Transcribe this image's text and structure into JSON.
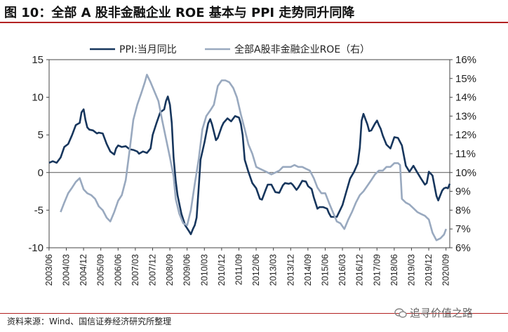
{
  "title": "图 10：全部 A 股非金融企业 ROE 基本与 PPI 走势同升同降",
  "source": "资料来源：Wind、国信证券经济研究所整理",
  "watermark": "追寻价值之路",
  "colors": {
    "ppi": "#17365d",
    "roe": "#99a9bf",
    "accent": "#b22222"
  },
  "chart_data": {
    "type": "line",
    "x": [
      "2003/06",
      "2004/03",
      "2004/12",
      "2005/09",
      "2006/06",
      "2007/03",
      "2007/12",
      "2008/09",
      "2009/06",
      "2010/03",
      "2010/12",
      "2011/09",
      "2012/06",
      "2013/03",
      "2013/12",
      "2014/09",
      "2015/06",
      "2016/03",
      "2016/12",
      "2017/09",
      "2018/06",
      "2019/03",
      "2019/12",
      "2020/09"
    ],
    "legend": [
      "PPI:当月同比",
      "全部A股非金融企业ROE（右）"
    ],
    "left_axis": {
      "ylim": [
        -10,
        15
      ],
      "ticks": [
        "15",
        "10",
        "5",
        "0",
        "-5",
        "-10"
      ]
    },
    "right_axis": {
      "ylim": [
        6,
        16
      ],
      "ticks": [
        "16%",
        "15%",
        "14%",
        "13%",
        "12%",
        "11%",
        "10%",
        "9%",
        "8%",
        "7%",
        "6%"
      ]
    },
    "series": [
      {
        "name": "PPI:当月同比",
        "axis": "left",
        "points": [
          [
            2003.42,
            1.3
          ],
          [
            2003.58,
            1.5
          ],
          [
            2003.75,
            1.3
          ],
          [
            2003.92,
            2.0
          ],
          [
            2004.08,
            3.4
          ],
          [
            2004.25,
            3.8
          ],
          [
            2004.42,
            5.0
          ],
          [
            2004.58,
            6.3
          ],
          [
            2004.75,
            6.6
          ],
          [
            2004.83,
            8.0
          ],
          [
            2004.92,
            8.4
          ],
          [
            2005.0,
            7.0
          ],
          [
            2005.08,
            6.0
          ],
          [
            2005.17,
            5.7
          ],
          [
            2005.33,
            5.6
          ],
          [
            2005.5,
            5.2
          ],
          [
            2005.58,
            5.3
          ],
          [
            2005.75,
            5.2
          ],
          [
            2005.92,
            3.8
          ],
          [
            2006.08,
            2.8
          ],
          [
            2006.25,
            2.4
          ],
          [
            2006.33,
            3.2
          ],
          [
            2006.42,
            3.6
          ],
          [
            2006.58,
            3.4
          ],
          [
            2006.75,
            3.5
          ],
          [
            2006.92,
            3.1
          ],
          [
            2007.08,
            3.0
          ],
          [
            2007.25,
            2.8
          ],
          [
            2007.33,
            2.5
          ],
          [
            2007.5,
            2.8
          ],
          [
            2007.67,
            2.6
          ],
          [
            2007.83,
            3.2
          ],
          [
            2007.92,
            5.0
          ],
          [
            2008.08,
            6.5
          ],
          [
            2008.25,
            8.0
          ],
          [
            2008.42,
            8.4
          ],
          [
            2008.5,
            9.5
          ],
          [
            2008.58,
            10.1
          ],
          [
            2008.67,
            9.0
          ],
          [
            2008.75,
            6.6
          ],
          [
            2008.83,
            2.0
          ],
          [
            2008.92,
            -1.1
          ],
          [
            2009.0,
            -3.0
          ],
          [
            2009.17,
            -5.5
          ],
          [
            2009.33,
            -7.0
          ],
          [
            2009.5,
            -7.8
          ],
          [
            2009.58,
            -8.2
          ],
          [
            2009.67,
            -7.5
          ],
          [
            2009.75,
            -7.0
          ],
          [
            2009.83,
            -6.0
          ],
          [
            2009.92,
            -2.0
          ],
          [
            2010.0,
            1.7
          ],
          [
            2010.17,
            4.0
          ],
          [
            2010.33,
            6.5
          ],
          [
            2010.42,
            7.1
          ],
          [
            2010.5,
            6.4
          ],
          [
            2010.67,
            4.3
          ],
          [
            2010.75,
            4.6
          ],
          [
            2010.92,
            6.1
          ],
          [
            2011.0,
            6.6
          ],
          [
            2011.17,
            7.2
          ],
          [
            2011.33,
            6.8
          ],
          [
            2011.5,
            7.5
          ],
          [
            2011.67,
            7.3
          ],
          [
            2011.75,
            6.5
          ],
          [
            2011.83,
            5.0
          ],
          [
            2011.92,
            1.7
          ],
          [
            2012.08,
            0.1
          ],
          [
            2012.25,
            -1.4
          ],
          [
            2012.42,
            -2.1
          ],
          [
            2012.58,
            -3.5
          ],
          [
            2012.67,
            -3.6
          ],
          [
            2012.83,
            -2.3
          ],
          [
            2012.92,
            -1.6
          ],
          [
            2013.08,
            -1.6
          ],
          [
            2013.25,
            -2.6
          ],
          [
            2013.42,
            -2.7
          ],
          [
            2013.58,
            -1.7
          ],
          [
            2013.67,
            -1.4
          ],
          [
            2013.83,
            -1.5
          ],
          [
            2013.92,
            -1.4
          ],
          [
            2014.0,
            -1.6
          ],
          [
            2014.17,
            -2.3
          ],
          [
            2014.25,
            -2.0
          ],
          [
            2014.42,
            -1.1
          ],
          [
            2014.58,
            -1.2
          ],
          [
            2014.67,
            -1.8
          ],
          [
            2014.83,
            -2.2
          ],
          [
            2014.92,
            -3.3
          ],
          [
            2015.08,
            -4.8
          ],
          [
            2015.17,
            -4.6
          ],
          [
            2015.33,
            -4.6
          ],
          [
            2015.5,
            -4.8
          ],
          [
            2015.58,
            -5.4
          ],
          [
            2015.67,
            -5.9
          ],
          [
            2015.83,
            -5.9
          ],
          [
            2015.92,
            -5.9
          ],
          [
            2016.08,
            -4.9
          ],
          [
            2016.17,
            -4.3
          ],
          [
            2016.33,
            -2.6
          ],
          [
            2016.5,
            -0.8
          ],
          [
            2016.67,
            0.1
          ],
          [
            2016.83,
            1.2
          ],
          [
            2016.92,
            3.3
          ],
          [
            2017.0,
            6.9
          ],
          [
            2017.08,
            7.8
          ],
          [
            2017.25,
            6.4
          ],
          [
            2017.33,
            5.5
          ],
          [
            2017.42,
            5.6
          ],
          [
            2017.58,
            6.5
          ],
          [
            2017.67,
            6.9
          ],
          [
            2017.75,
            6.3
          ],
          [
            2017.83,
            5.8
          ],
          [
            2017.92,
            4.9
          ],
          [
            2018.08,
            3.7
          ],
          [
            2018.25,
            3.2
          ],
          [
            2018.42,
            4.7
          ],
          [
            2018.58,
            4.6
          ],
          [
            2018.75,
            3.6
          ],
          [
            2018.92,
            0.9
          ],
          [
            2019.08,
            0.1
          ],
          [
            2019.25,
            0.9
          ],
          [
            2019.42,
            0.0
          ],
          [
            2019.58,
            -0.8
          ],
          [
            2019.75,
            -1.6
          ],
          [
            2019.83,
            -1.4
          ],
          [
            2019.92,
            0.1
          ],
          [
            2020.08,
            -0.4
          ],
          [
            2020.25,
            -3.1
          ],
          [
            2020.33,
            -3.7
          ],
          [
            2020.42,
            -3.0
          ],
          [
            2020.5,
            -2.4
          ],
          [
            2020.58,
            -2.1
          ],
          [
            2020.67,
            -2.0
          ],
          [
            2020.75,
            -2.1
          ],
          [
            2020.83,
            -1.5
          ]
        ]
      },
      {
        "name": "全部A股非金融企业ROE（右）",
        "axis": "right",
        "points": [
          [
            2003.92,
            7.9
          ],
          [
            2004.08,
            8.4
          ],
          [
            2004.25,
            8.9
          ],
          [
            2004.42,
            9.2
          ],
          [
            2004.58,
            9.5
          ],
          [
            2004.75,
            9.7
          ],
          [
            2004.92,
            9.1
          ],
          [
            2005.08,
            8.9
          ],
          [
            2005.25,
            8.8
          ],
          [
            2005.42,
            8.6
          ],
          [
            2005.58,
            8.2
          ],
          [
            2005.75,
            8.0
          ],
          [
            2005.92,
            7.6
          ],
          [
            2006.08,
            7.4
          ],
          [
            2006.25,
            7.9
          ],
          [
            2006.42,
            8.5
          ],
          [
            2006.58,
            8.8
          ],
          [
            2006.75,
            9.6
          ],
          [
            2006.92,
            11.2
          ],
          [
            2007.08,
            12.8
          ],
          [
            2007.25,
            13.6
          ],
          [
            2007.42,
            14.2
          ],
          [
            2007.58,
            14.8
          ],
          [
            2007.67,
            15.2
          ],
          [
            2007.83,
            14.8
          ],
          [
            2008.0,
            14.3
          ],
          [
            2008.17,
            13.8
          ],
          [
            2008.33,
            12.8
          ],
          [
            2008.5,
            11.8
          ],
          [
            2008.67,
            10.8
          ],
          [
            2008.83,
            9.8
          ],
          [
            2008.92,
            8.6
          ],
          [
            2009.08,
            7.8
          ],
          [
            2009.25,
            7.3
          ],
          [
            2009.42,
            7.2
          ],
          [
            2009.58,
            8.0
          ],
          [
            2009.75,
            9.4
          ],
          [
            2009.92,
            10.7
          ],
          [
            2010.08,
            12.3
          ],
          [
            2010.25,
            13.0
          ],
          [
            2010.42,
            13.3
          ],
          [
            2010.58,
            13.6
          ],
          [
            2010.75,
            14.6
          ],
          [
            2010.92,
            14.9
          ],
          [
            2011.08,
            14.9
          ],
          [
            2011.25,
            14.8
          ],
          [
            2011.42,
            14.5
          ],
          [
            2011.58,
            14.0
          ],
          [
            2011.75,
            13.1
          ],
          [
            2011.92,
            12.3
          ],
          [
            2012.08,
            11.5
          ],
          [
            2012.25,
            11.0
          ],
          [
            2012.42,
            10.3
          ],
          [
            2012.58,
            10.2
          ],
          [
            2012.75,
            10.1
          ],
          [
            2012.92,
            10.0
          ],
          [
            2013.08,
            9.9
          ],
          [
            2013.25,
            10.0
          ],
          [
            2013.42,
            10.1
          ],
          [
            2013.58,
            10.3
          ],
          [
            2013.75,
            10.3
          ],
          [
            2013.92,
            10.3
          ],
          [
            2014.08,
            10.4
          ],
          [
            2014.25,
            10.3
          ],
          [
            2014.42,
            10.3
          ],
          [
            2014.58,
            10.2
          ],
          [
            2014.75,
            10.1
          ],
          [
            2014.92,
            9.7
          ],
          [
            2015.08,
            9.2
          ],
          [
            2015.25,
            8.9
          ],
          [
            2015.42,
            8.9
          ],
          [
            2015.58,
            8.4
          ],
          [
            2015.75,
            7.9
          ],
          [
            2015.92,
            7.4
          ],
          [
            2016.08,
            7.3
          ],
          [
            2016.25,
            7.0
          ],
          [
            2016.42,
            7.5
          ],
          [
            2016.58,
            7.9
          ],
          [
            2016.75,
            8.4
          ],
          [
            2016.92,
            8.8
          ],
          [
            2017.08,
            9.0
          ],
          [
            2017.25,
            9.3
          ],
          [
            2017.42,
            9.6
          ],
          [
            2017.58,
            9.9
          ],
          [
            2017.75,
            10.1
          ],
          [
            2017.92,
            10.1
          ],
          [
            2018.08,
            10.3
          ],
          [
            2018.25,
            10.3
          ],
          [
            2018.42,
            10.5
          ],
          [
            2018.58,
            10.5
          ],
          [
            2018.67,
            10.4
          ],
          [
            2018.75,
            8.6
          ],
          [
            2018.92,
            8.4
          ],
          [
            2019.08,
            8.3
          ],
          [
            2019.25,
            8.1
          ],
          [
            2019.42,
            7.9
          ],
          [
            2019.58,
            7.8
          ],
          [
            2019.75,
            7.7
          ],
          [
            2019.92,
            7.5
          ],
          [
            2020.08,
            6.8
          ],
          [
            2020.25,
            6.4
          ],
          [
            2020.42,
            6.5
          ],
          [
            2020.58,
            6.7
          ],
          [
            2020.67,
            7.0
          ]
        ]
      }
    ]
  }
}
